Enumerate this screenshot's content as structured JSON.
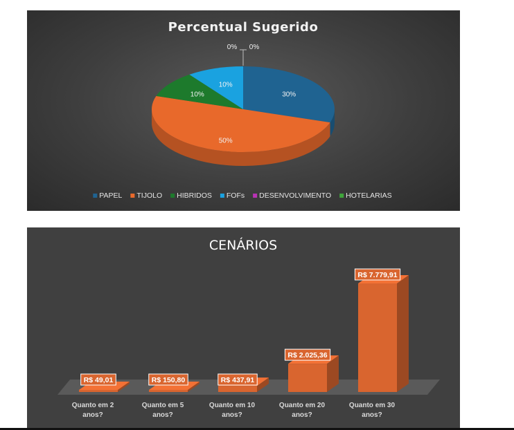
{
  "chart_data": [
    {
      "type": "pie",
      "title": "Percentual Sugerido",
      "categories": [
        "PAPEL",
        "TIJOLO",
        "HIBRIDOS",
        "FOFs",
        "DESENVOLVIMENTO",
        "HOTELARIAS"
      ],
      "values": [
        30,
        50,
        10,
        10,
        0,
        0
      ],
      "labels": [
        "30%",
        "50%",
        "10%",
        "10%",
        "0%",
        "0%"
      ],
      "colors": [
        "#1f6391",
        "#e8692b",
        "#1d7a2c",
        "#1aa2e0",
        "#b832b4",
        "#3fa53b"
      ],
      "legend_position": "bottom",
      "style": "3d"
    },
    {
      "type": "bar",
      "title": "CENÁRIOS",
      "categories": [
        "Quanto em 2 anos?",
        "Quanto em 5 anos?",
        "Quanto em 10 anos?",
        "Quanto em 20 anos?",
        "Quanto em 30 anos?"
      ],
      "category_lines": [
        [
          "Quanto em 2",
          "anos?"
        ],
        [
          "Quanto em 5",
          "anos?"
        ],
        [
          "Quanto em 10",
          "anos?"
        ],
        [
          "Quanto em 20",
          "anos?"
        ],
        [
          "Quanto em 30",
          "anos?"
        ]
      ],
      "values": [
        49.01,
        150.8,
        437.91,
        2025.36,
        7779.91
      ],
      "labels": [
        "R$ 49,01",
        "R$ 150,80",
        "R$ 437,91",
        "R$ 2.025,36",
        "R$ 7.779,91"
      ],
      "ylim": [
        0,
        7779.91
      ],
      "color": "#d9652f",
      "grid": false,
      "style": "3d"
    }
  ]
}
